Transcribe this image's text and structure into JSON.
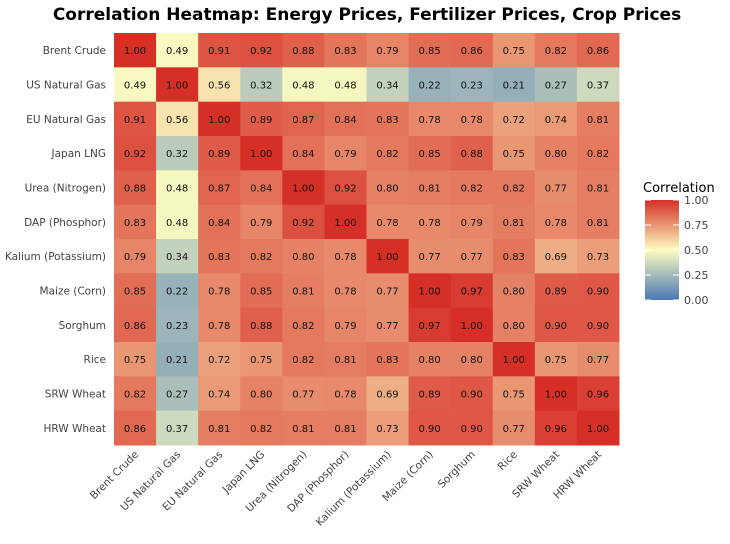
{
  "chart_data": {
    "type": "heatmap",
    "title": "Correlation Heatmap: Energy Prices, Fertilizer Prices, Crop Prices",
    "variables": [
      "Brent Crude",
      "US Natural Gas",
      "EU Natural Gas",
      "Japan LNG",
      "Urea (Nitrogen)",
      "DAP (Phosphor)",
      "Kalium (Potassium)",
      "Maize (Corn)",
      "Sorghum",
      "Rice",
      "SRW Wheat",
      "HRW Wheat"
    ],
    "values": [
      [
        1.0,
        0.49,
        0.91,
        0.92,
        0.88,
        0.83,
        0.79,
        0.85,
        0.86,
        0.75,
        0.82,
        0.86
      ],
      [
        0.49,
        1.0,
        0.56,
        0.32,
        0.48,
        0.48,
        0.34,
        0.22,
        0.23,
        0.21,
        0.27,
        0.37
      ],
      [
        0.91,
        0.56,
        1.0,
        0.89,
        0.87,
        0.84,
        0.83,
        0.78,
        0.78,
        0.72,
        0.74,
        0.81
      ],
      [
        0.92,
        0.32,
        0.89,
        1.0,
        0.84,
        0.79,
        0.82,
        0.85,
        0.88,
        0.75,
        0.8,
        0.82
      ],
      [
        0.88,
        0.48,
        0.87,
        0.84,
        1.0,
        0.92,
        0.8,
        0.81,
        0.82,
        0.82,
        0.77,
        0.81
      ],
      [
        0.83,
        0.48,
        0.84,
        0.79,
        0.92,
        1.0,
        0.78,
        0.78,
        0.79,
        0.81,
        0.78,
        0.81
      ],
      [
        0.79,
        0.34,
        0.83,
        0.82,
        0.8,
        0.78,
        1.0,
        0.77,
        0.77,
        0.83,
        0.69,
        0.73
      ],
      [
        0.85,
        0.22,
        0.78,
        0.85,
        0.81,
        0.78,
        0.77,
        1.0,
        0.97,
        0.8,
        0.89,
        0.9
      ],
      [
        0.86,
        0.23,
        0.78,
        0.88,
        0.82,
        0.79,
        0.77,
        0.97,
        1.0,
        0.8,
        0.9,
        0.9
      ],
      [
        0.75,
        0.21,
        0.72,
        0.75,
        0.82,
        0.81,
        0.83,
        0.8,
        0.8,
        1.0,
        0.75,
        0.77
      ],
      [
        0.82,
        0.27,
        0.74,
        0.8,
        0.77,
        0.78,
        0.69,
        0.89,
        0.9,
        0.75,
        1.0,
        0.96
      ],
      [
        0.86,
        0.37,
        0.81,
        0.82,
        0.81,
        0.81,
        0.73,
        0.9,
        0.9,
        0.77,
        0.96,
        1.0
      ]
    ],
    "legend": {
      "title": "Correlation",
      "ticks": [
        "1.00",
        "0.75",
        "0.50",
        "0.25",
        "0.00"
      ],
      "range": [
        0,
        1
      ],
      "placement": "right"
    },
    "colors": {
      "low": "#4a78b4",
      "mid": "#fcfcc0",
      "high": "#d62f26"
    },
    "midpoint": 0.5
  }
}
